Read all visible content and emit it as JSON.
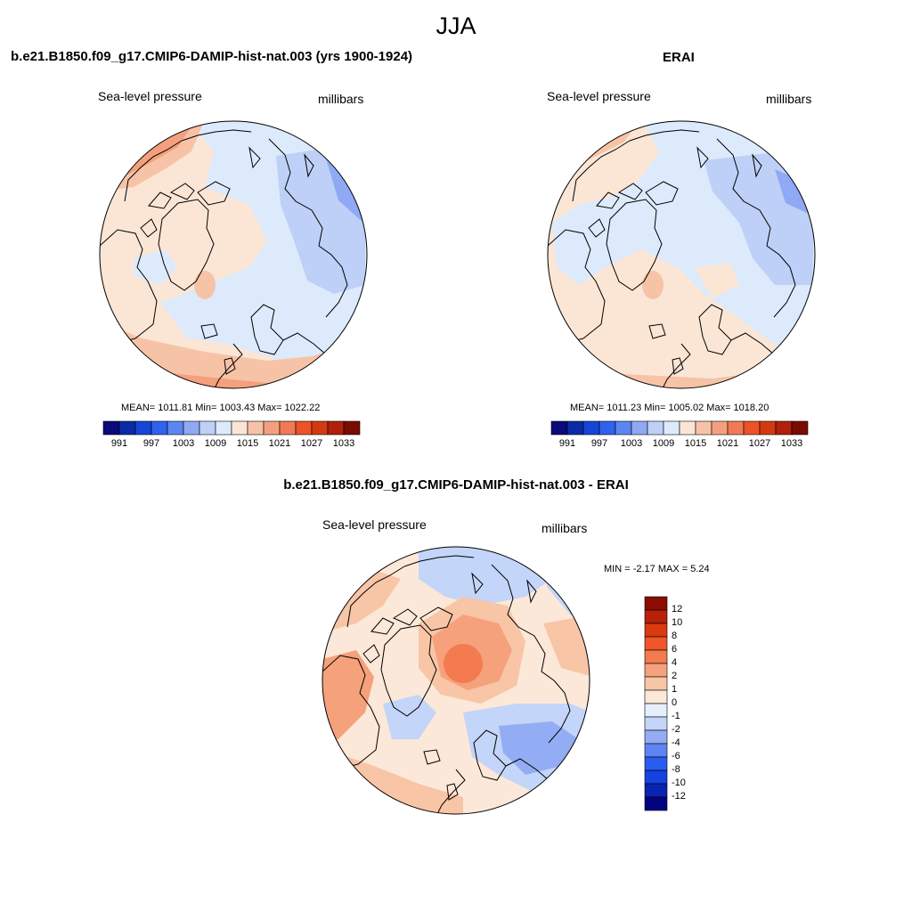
{
  "figure": {
    "title": "JJA",
    "panel_left_title": "b.e21.B1850.f09_g17.CMIP6-DAMIP-hist-nat.003 (yrs 1900-1924)",
    "panel_right_title": "ERAI",
    "panel_diff_title": "b.e21.B1850.f09_g17.CMIP6-DAMIP-hist-nat.003 - ERAI"
  },
  "panels": {
    "model": {
      "variable_label": "Sea-level pressure",
      "units_label": "millibars",
      "stats_text": "MEAN= 1011.81  Min= 1003.43  Max= 1022.22"
    },
    "obs": {
      "variable_label": "Sea-level pressure",
      "units_label": "millibars",
      "stats_text": "MEAN= 1011.23  Min= 1005.02  Max= 1018.20"
    },
    "diff": {
      "variable_label": "Sea-level pressure",
      "units_label": "millibars",
      "stats_text": "MIN =  -2.17 MAX =   5.24"
    }
  },
  "colorbars": {
    "abs_colors": [
      "#0a0a7a",
      "#0b2aa8",
      "#1446d8",
      "#2f62ee",
      "#5d84f2",
      "#8fa9f4",
      "#bed0f7",
      "#ddeafb",
      "#fbe6d6",
      "#f7c3a6",
      "#f4a07e",
      "#f17a55",
      "#ec5326",
      "#d43a12",
      "#b0200a",
      "#7a0c04"
    ],
    "abs_tick_labels": [
      "991",
      "997",
      "1003",
      "1009",
      "1015",
      "1021",
      "1027",
      "1033"
    ],
    "diff_colors": [
      "#030380",
      "#0a22b0",
      "#1542e0",
      "#2a5cf0",
      "#5d84f2",
      "#93adf4",
      "#c3d5f8",
      "#e6eefb",
      "#fbe8d9",
      "#f8c5a6",
      "#f5a17c",
      "#f47a50",
      "#ef5528",
      "#da3b10",
      "#b8200a",
      "#8a0c04"
    ],
    "diff_tick_labels": [
      "12",
      "10",
      "8",
      "6",
      "4",
      "2",
      "1",
      "0",
      "-1",
      "-2",
      "-4",
      "-6",
      "-8",
      "-10",
      "-12"
    ]
  },
  "chart_data": [
    {
      "type": "heatmap",
      "title": "b.e21.B1850.f09_g17.CMIP6-DAMIP-hist-nat.003 (yrs 1900-1924)",
      "variable": "Sea-level pressure",
      "units": "millibars",
      "projection": "north-polar-stereographic",
      "mean": 1011.81,
      "min": 1003.43,
      "max": 1022.22,
      "levels": [
        991,
        994,
        997,
        1000,
        1003,
        1006,
        1009,
        1012,
        1015,
        1018,
        1021,
        1024,
        1027,
        1030,
        1033
      ],
      "colorbar_placement": "bottom"
    },
    {
      "type": "heatmap",
      "title": "ERAI",
      "variable": "Sea-level pressure",
      "units": "millibars",
      "projection": "north-polar-stereographic",
      "mean": 1011.23,
      "min": 1005.02,
      "max": 1018.2,
      "levels": [
        991,
        994,
        997,
        1000,
        1003,
        1006,
        1009,
        1012,
        1015,
        1018,
        1021,
        1024,
        1027,
        1030,
        1033
      ],
      "colorbar_placement": "bottom"
    },
    {
      "type": "heatmap",
      "title": "b.e21.B1850.f09_g17.CMIP6-DAMIP-hist-nat.003 - ERAI",
      "variable": "Sea-level pressure",
      "units": "millibars",
      "projection": "north-polar-stereographic",
      "min": -2.17,
      "max": 5.24,
      "levels": [
        -12,
        -10,
        -8,
        -6,
        -4,
        -2,
        -1,
        0,
        1,
        2,
        4,
        6,
        8,
        10,
        12
      ],
      "colorbar_placement": "right"
    }
  ]
}
